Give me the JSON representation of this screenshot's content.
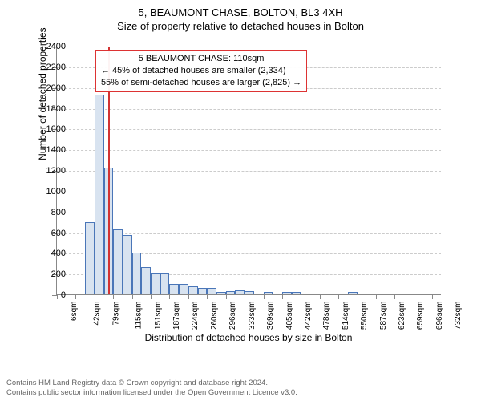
{
  "header": {
    "address": "5, BEAUMONT CHASE, BOLTON, BL3 4XH",
    "subtitle": "Size of property relative to detached houses in Bolton"
  },
  "chart": {
    "type": "histogram",
    "x_axis_title": "Distribution of detached houses by size in Bolton",
    "y_axis_title": "Number of detached properties",
    "ylim": [
      0,
      2400
    ],
    "ytick_step": 200,
    "yticks": [
      0,
      200,
      400,
      600,
      800,
      1000,
      1200,
      1400,
      1600,
      1800,
      2000,
      2200,
      2400
    ],
    "x_labels": [
      "6sqm",
      "42sqm",
      "79sqm",
      "115sqm",
      "151sqm",
      "187sqm",
      "224sqm",
      "260sqm",
      "296sqm",
      "333sqm",
      "369sqm",
      "405sqm",
      "442sqm",
      "478sqm",
      "514sqm",
      "550sqm",
      "587sqm",
      "623sqm",
      "659sqm",
      "696sqm",
      "732sqm"
    ],
    "x_label_step": 2,
    "values": [
      0,
      0,
      0,
      700,
      1930,
      1220,
      630,
      575,
      400,
      260,
      200,
      200,
      100,
      100,
      80,
      60,
      60,
      20,
      30,
      40,
      30,
      0,
      20,
      0,
      20,
      20,
      0,
      0,
      0,
      0,
      0,
      20,
      0,
      0,
      0,
      0,
      0,
      0,
      0,
      0,
      0
    ],
    "bar_fill": "#d8e3f0",
    "bar_stroke": "#4a76b8",
    "grid_color": "#cccccc",
    "axis_color": "#888888",
    "background_color": "#ffffff",
    "marker": {
      "position_index": 5.5,
      "color": "#d33333"
    },
    "info_box": {
      "line1": "5 BEAUMONT CHASE: 110sqm",
      "line2": "← 45% of detached houses are smaller (2,334)",
      "line3": "55% of semi-detached houses are larger (2,825) →",
      "border_color": "#d33333"
    },
    "fontsize_title": 13,
    "fontsize_axis_title": 12,
    "fontsize_ticks": 11,
    "fontsize_xticks": 10,
    "fontsize_infobox": 11
  },
  "footer": {
    "line1": "Contains HM Land Registry data © Crown copyright and database right 2024.",
    "line2": "Contains public sector information licensed under the Open Government Licence v3.0."
  }
}
